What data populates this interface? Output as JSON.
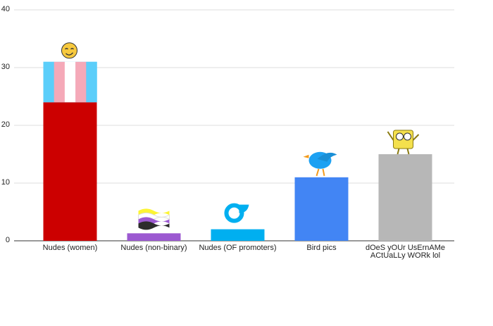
{
  "chart_data": {
    "type": "bar",
    "categories": [
      "Nudes (women)",
      "Nudes (non-binary)",
      "Nudes (OF promoters)",
      "Bird pics",
      "dOeS yOUr UsErnAMe ACtUaLLy WORk  lol"
    ],
    "series": [
      {
        "colors": [
          "#cc0000",
          "#9c59d1",
          "#00aff0",
          "#4285f4",
          "#b7b7b7"
        ],
        "values": [
          24,
          1.3,
          2,
          11,
          15
        ]
      },
      {
        "colors": [
          "#5bcefa",
          null,
          null,
          null,
          null
        ],
        "stripes": [
          "#5bcefa",
          "#f5a9b8",
          "#ffffff",
          "#f5a9b8",
          "#5bcefa"
        ],
        "values": [
          7,
          null,
          null,
          null,
          null
        ]
      }
    ],
    "ylim": [
      0,
      40
    ],
    "yticks": [
      0,
      10,
      20,
      30,
      40
    ],
    "grid": true
  }
}
